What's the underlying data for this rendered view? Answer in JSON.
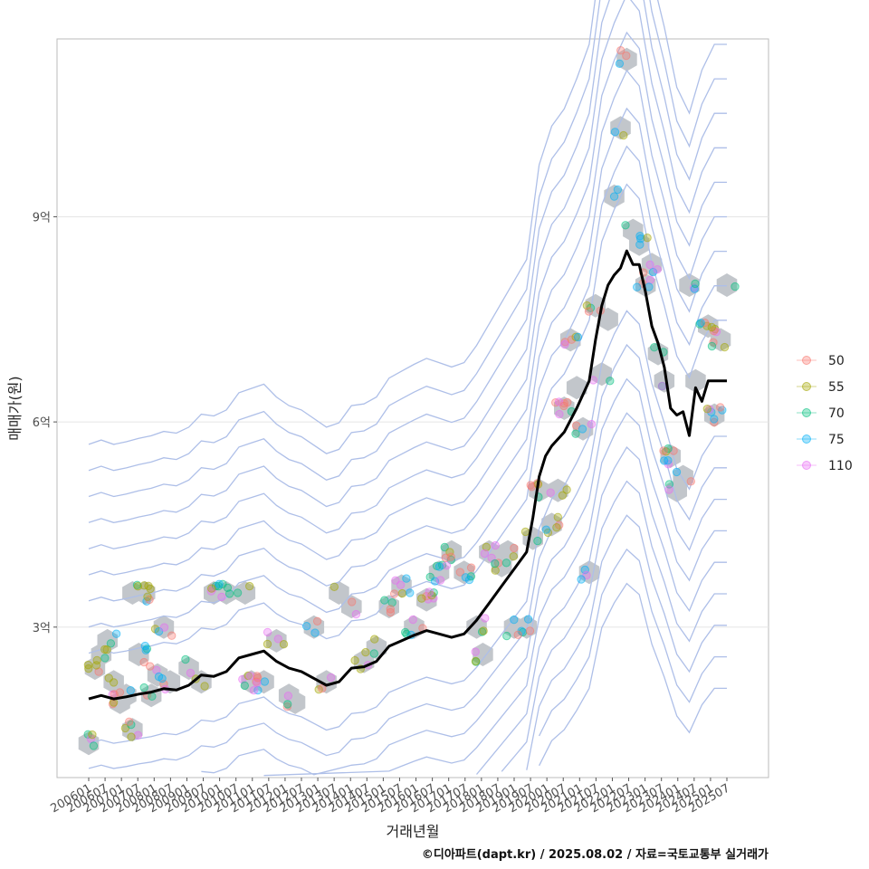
{
  "chart_data": {
    "type": "scatter",
    "xlabel": "거래년월",
    "ylabel": "매매가(원)",
    "caption": "©디아파트(dapt.kr) / 2025.08.02 / 자료=국토교통부 실거래가",
    "y_unit_label": "억",
    "y_tick_values": [
      3,
      6,
      9
    ],
    "y_tick_labels": [
      "3억",
      "6억",
      "9억"
    ],
    "ylim": [
      0.8,
      11.6
    ],
    "x_tick_labels": [
      "200601",
      "200607",
      "200701",
      "200707",
      "200801",
      "200807",
      "200901",
      "200907",
      "201001",
      "201007",
      "201101",
      "201107",
      "201201",
      "201207",
      "201301",
      "201307",
      "201401",
      "201407",
      "201501",
      "201507",
      "201601",
      "201607",
      "201701",
      "201707",
      "201801",
      "201807",
      "201901",
      "201907",
      "202001",
      "202007",
      "202101",
      "202107",
      "202201",
      "202207",
      "202301",
      "202307",
      "202401",
      "202407",
      "202501",
      "202507"
    ],
    "grid": "horizontal",
    "legend_position": "right",
    "series": [
      {
        "name": "50",
        "color": "#f8766d"
      },
      {
        "name": "55",
        "color": "#a3a500"
      },
      {
        "name": "70",
        "color": "#00bf7d"
      },
      {
        "name": "75",
        "color": "#00b0f6"
      },
      {
        "name": "110",
        "color": "#e76bf3"
      }
    ],
    "trend_line": [
      [
        0,
        1.95
      ],
      [
        2,
        2.0
      ],
      [
        4,
        1.95
      ],
      [
        6,
        1.98
      ],
      [
        8,
        2.02
      ],
      [
        10,
        2.05
      ],
      [
        12,
        2.1
      ],
      [
        14,
        2.08
      ],
      [
        16,
        2.15
      ],
      [
        18,
        2.3
      ],
      [
        20,
        2.28
      ],
      [
        22,
        2.35
      ],
      [
        24,
        2.55
      ],
      [
        26,
        2.6
      ],
      [
        28,
        2.65
      ],
      [
        30,
        2.5
      ],
      [
        32,
        2.4
      ],
      [
        34,
        2.35
      ],
      [
        36,
        2.25
      ],
      [
        38,
        2.15
      ],
      [
        40,
        2.2
      ],
      [
        42,
        2.4
      ],
      [
        44,
        2.42
      ],
      [
        46,
        2.5
      ],
      [
        48,
        2.72
      ],
      [
        50,
        2.8
      ],
      [
        52,
        2.88
      ],
      [
        54,
        2.95
      ],
      [
        56,
        2.9
      ],
      [
        58,
        2.85
      ],
      [
        60,
        2.9
      ],
      [
        62,
        3.1
      ],
      [
        64,
        3.35
      ],
      [
        66,
        3.6
      ],
      [
        68,
        3.85
      ],
      [
        70,
        4.1
      ],
      [
        71,
        4.6
      ],
      [
        72,
        5.2
      ],
      [
        73,
        5.5
      ],
      [
        74,
        5.65
      ],
      [
        76,
        5.85
      ],
      [
        78,
        6.2
      ],
      [
        80,
        6.6
      ],
      [
        81,
        7.2
      ],
      [
        82,
        7.7
      ],
      [
        83,
        8.0
      ],
      [
        84,
        8.15
      ],
      [
        85,
        8.25
      ],
      [
        86,
        8.5
      ],
      [
        87,
        8.3
      ],
      [
        88,
        8.3
      ],
      [
        89,
        7.9
      ],
      [
        90,
        7.4
      ],
      [
        91,
        7.15
      ],
      [
        92,
        6.8
      ],
      [
        93,
        6.2
      ],
      [
        94,
        6.1
      ],
      [
        95,
        6.15
      ],
      [
        96,
        5.8
      ],
      [
        97,
        6.5
      ],
      [
        98,
        6.3
      ],
      [
        99,
        6.6
      ],
      [
        100,
        6.6
      ],
      [
        101,
        6.6
      ],
      [
        102,
        6.6
      ]
    ],
    "hexbin_cells": [
      [
        0,
        1.3
      ],
      [
        1,
        2.4
      ],
      [
        2,
        2.6
      ],
      [
        3,
        2.8
      ],
      [
        4,
        2.2
      ],
      [
        5,
        1.9
      ],
      [
        6,
        2.0
      ],
      [
        7,
        3.5
      ],
      [
        7,
        1.5
      ],
      [
        8,
        2.6
      ],
      [
        9,
        3.5
      ],
      [
        10,
        2.0
      ],
      [
        11,
        2.3
      ],
      [
        12,
        3.0
      ],
      [
        13,
        2.2
      ],
      [
        16,
        2.4
      ],
      [
        18,
        2.2
      ],
      [
        20,
        3.5
      ],
      [
        22,
        3.5
      ],
      [
        25,
        3.5
      ],
      [
        26,
        2.2
      ],
      [
        28,
        2.2
      ],
      [
        30,
        2.8
      ],
      [
        32,
        2.0
      ],
      [
        33,
        1.9
      ],
      [
        36,
        3.0
      ],
      [
        38,
        2.2
      ],
      [
        40,
        3.5
      ],
      [
        42,
        3.3
      ],
      [
        44,
        2.5
      ],
      [
        46,
        2.7
      ],
      [
        48,
        3.3
      ],
      [
        50,
        3.6
      ],
      [
        52,
        3.0
      ],
      [
        54,
        3.4
      ],
      [
        56,
        3.8
      ],
      [
        58,
        4.1
      ],
      [
        60,
        3.8
      ],
      [
        62,
        3.0
      ],
      [
        63,
        2.6
      ],
      [
        64,
        4.1
      ],
      [
        66,
        3.9
      ],
      [
        67,
        4.1
      ],
      [
        68,
        3.0
      ],
      [
        70,
        3.0
      ],
      [
        71,
        4.3
      ],
      [
        72,
        5.0
      ],
      [
        74,
        4.5
      ],
      [
        75,
        5.0
      ],
      [
        76,
        6.2
      ],
      [
        77,
        7.2
      ],
      [
        78,
        6.5
      ],
      [
        79,
        5.9
      ],
      [
        80,
        3.8
      ],
      [
        81,
        7.7
      ],
      [
        82,
        6.7
      ],
      [
        83,
        7.5
      ],
      [
        84,
        9.3
      ],
      [
        85,
        10.3
      ],
      [
        86,
        11.3
      ],
      [
        87,
        8.8
      ],
      [
        88,
        8.6
      ],
      [
        89,
        8.0
      ],
      [
        90,
        8.3
      ],
      [
        91,
        7.0
      ],
      [
        92,
        6.6
      ],
      [
        93,
        5.5
      ],
      [
        94,
        5.0
      ],
      [
        95,
        5.2
      ],
      [
        96,
        8.0
      ],
      [
        97,
        6.6
      ],
      [
        99,
        7.4
      ],
      [
        100,
        6.1
      ],
      [
        101,
        7.2
      ],
      [
        102,
        8.0
      ]
    ],
    "point_samples": 260
  }
}
